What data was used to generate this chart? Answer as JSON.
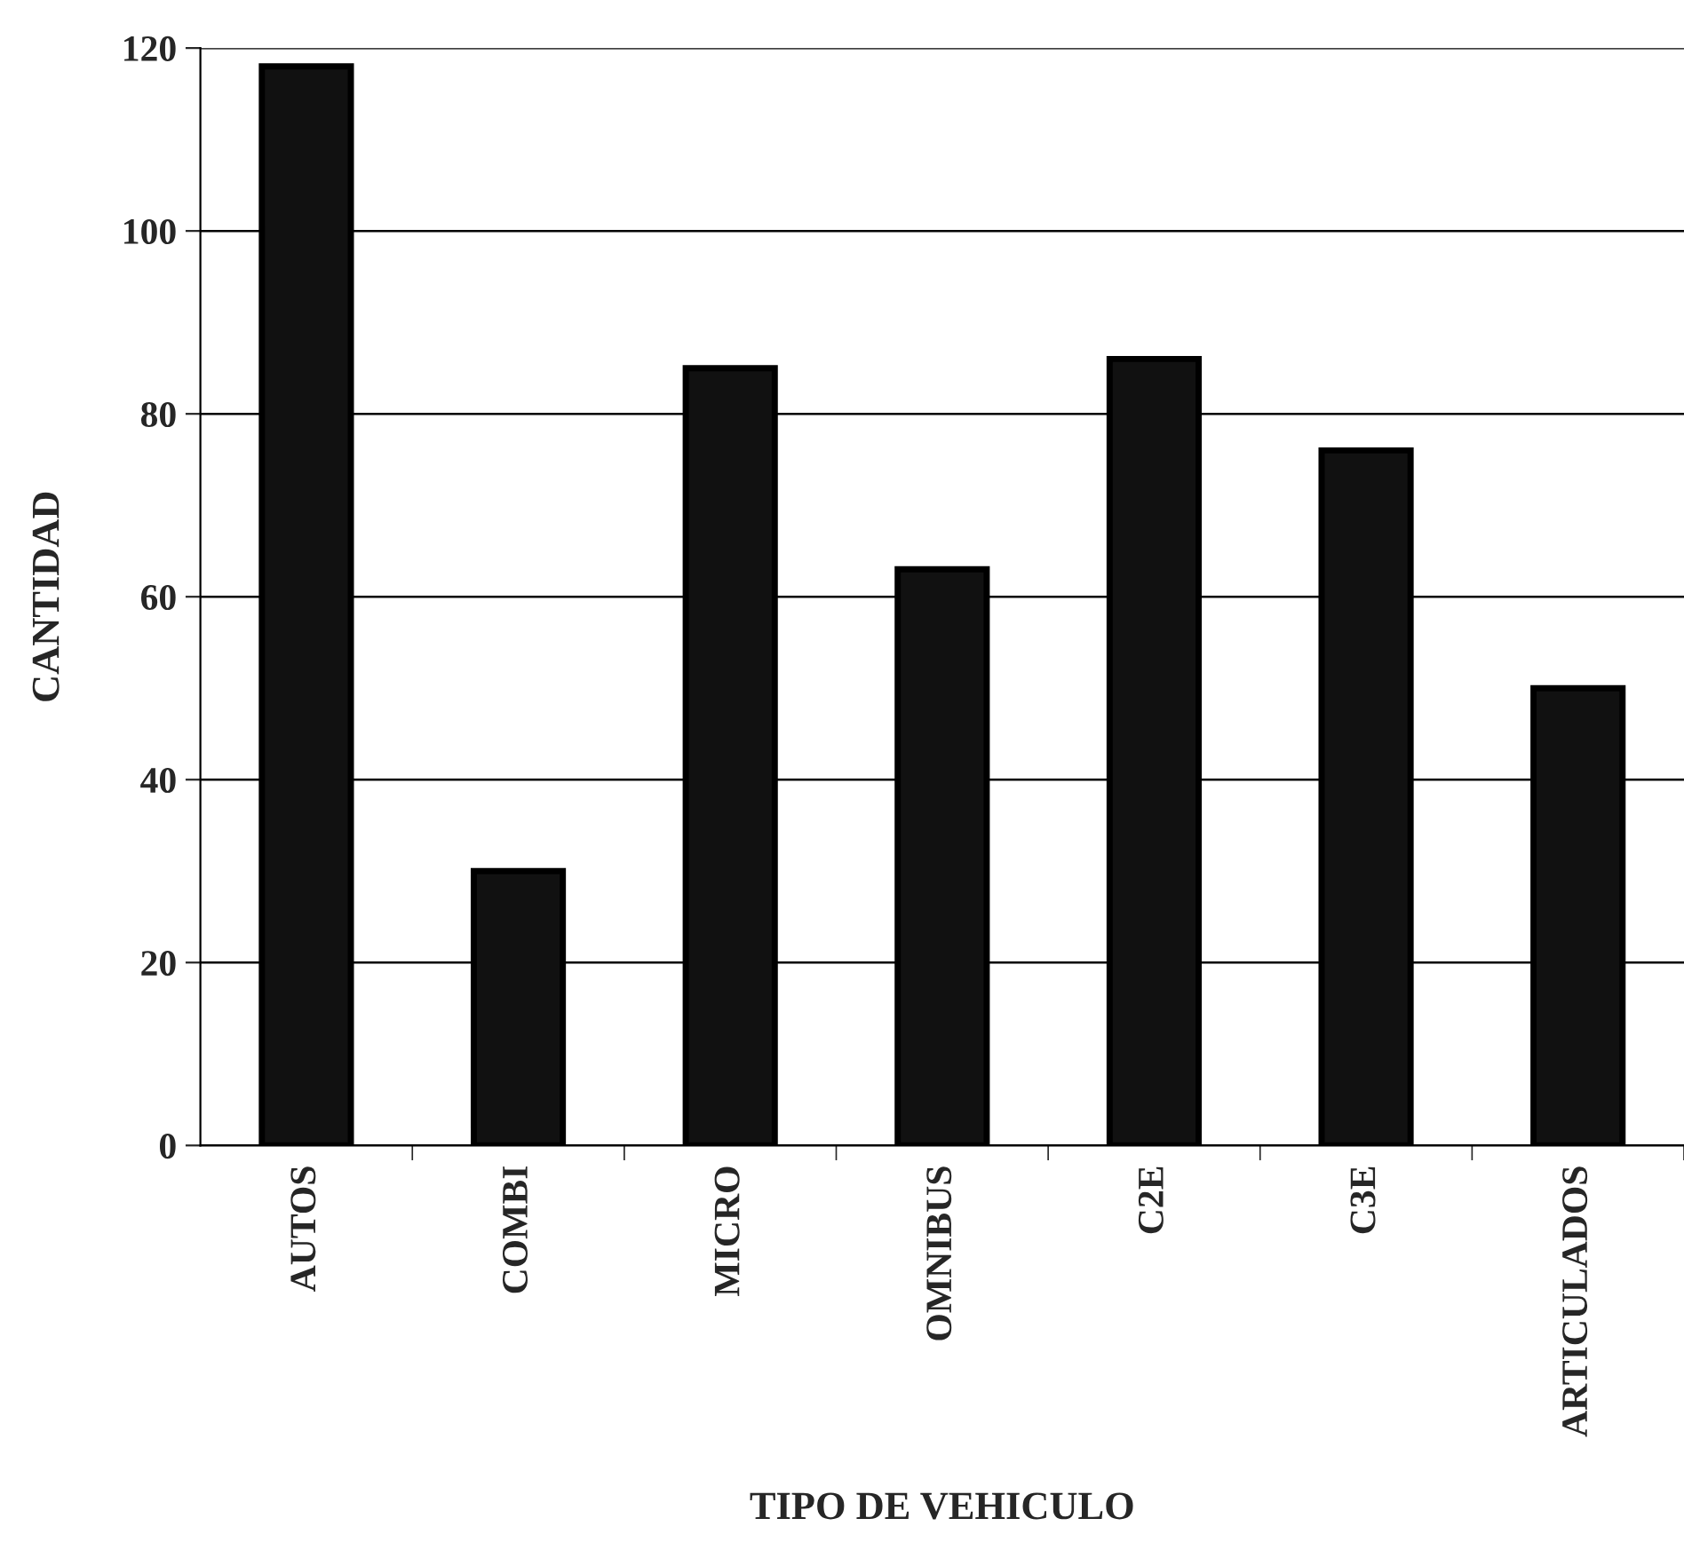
{
  "chart_data": {
    "type": "bar",
    "xlabel": "TIPO DE VEHICULO",
    "ylabel": "CANTIDAD",
    "categories": [
      "AUTOS",
      "COMBI",
      "MICRO",
      "OMNIBUS",
      "C2E",
      "C3E",
      "ARTICULADOS"
    ],
    "values": [
      118,
      30,
      85,
      63,
      86,
      76,
      50
    ],
    "color": "#111111",
    "ylim": [
      0,
      120
    ],
    "yticks": [
      0,
      20,
      40,
      60,
      80,
      100,
      120
    ],
    "grid": "y",
    "legend": false
  }
}
